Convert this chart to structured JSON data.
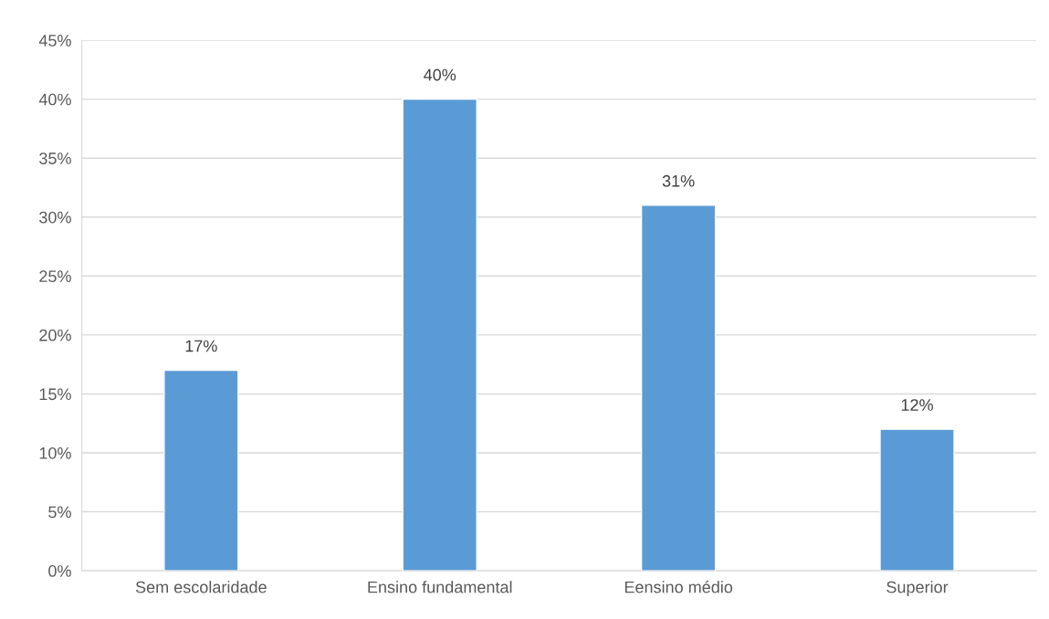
{
  "chart_data": {
    "type": "bar",
    "categories": [
      "Sem escolaridade",
      "Ensino fundamental",
      "Eensino médio",
      "Superior"
    ],
    "values": [
      17,
      40,
      31,
      12
    ],
    "value_labels": [
      "17%",
      "40%",
      "31%",
      "12%"
    ],
    "color": "#5b9bd5",
    "ylim": [
      0,
      45
    ],
    "yticks": [
      {
        "value": 0,
        "label": "0%"
      },
      {
        "value": 5,
        "label": "5%"
      },
      {
        "value": 10,
        "label": "10%"
      },
      {
        "value": 15,
        "label": "15%"
      },
      {
        "value": 20,
        "label": "20%"
      },
      {
        "value": 25,
        "label": "25%"
      },
      {
        "value": 30,
        "label": "30%"
      },
      {
        "value": 35,
        "label": "35%"
      },
      {
        "value": 40,
        "label": "40%"
      },
      {
        "value": 45,
        "label": "45%"
      }
    ],
    "grid": "y"
  }
}
